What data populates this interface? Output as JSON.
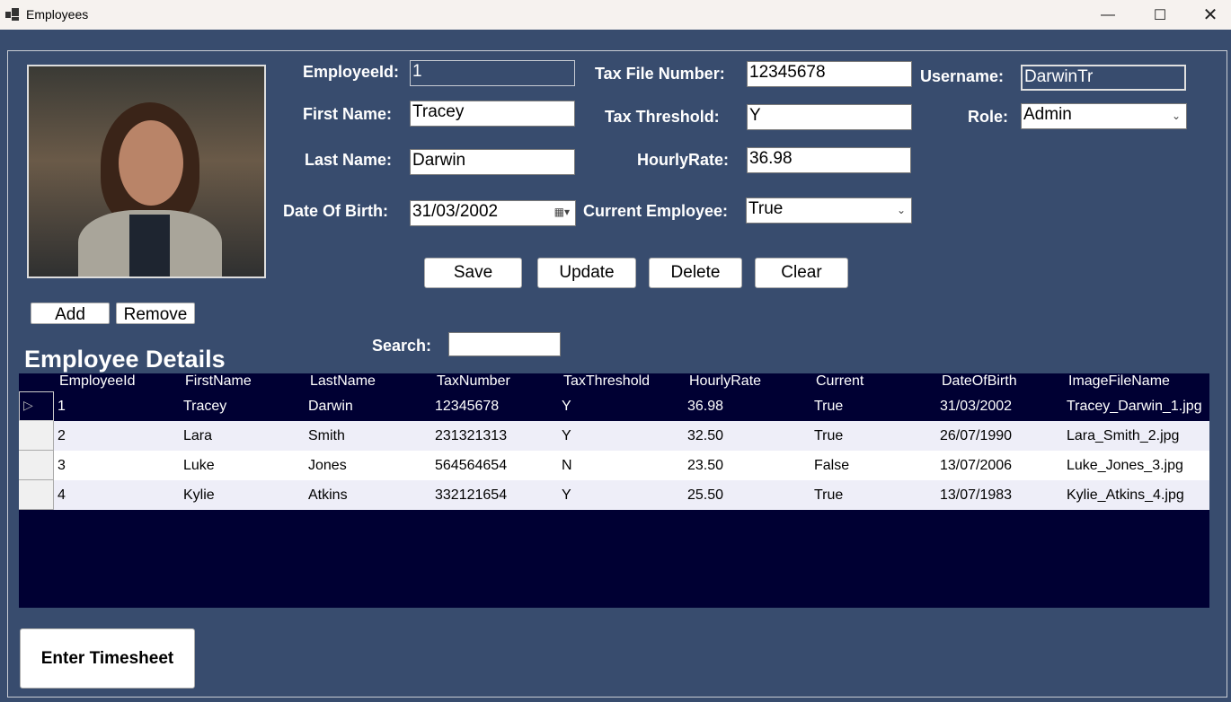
{
  "window": {
    "title": "Employees",
    "icon": "app-icon",
    "controls": [
      "minimize-icon",
      "maximize-icon",
      "close-icon"
    ]
  },
  "form": {
    "employee_id": {
      "label": "EmployeeId:",
      "value": "1"
    },
    "first_name": {
      "label": "First Name:",
      "value": "Tracey"
    },
    "last_name": {
      "label": "Last Name:",
      "value": "Darwin"
    },
    "dob": {
      "label": "Date Of Birth:",
      "value": "31/03/2002"
    },
    "tax_file": {
      "label": "Tax File Number:",
      "value": "12345678"
    },
    "tax_threshold": {
      "label": "Tax Threshold:",
      "value": "Y"
    },
    "hourly_rate": {
      "label": "HourlyRate:",
      "value": "36.98"
    },
    "current": {
      "label": "Current Employee:",
      "value": "True"
    },
    "username": {
      "label": "Username:",
      "value": "DarwinTr"
    },
    "role": {
      "label": "Role:",
      "value": "Admin"
    }
  },
  "buttons": {
    "save": "Save",
    "update": "Update",
    "delete": "Delete",
    "clear": "Clear",
    "add": "Add",
    "remove": "Remove",
    "timesheet": "Enter Timesheet"
  },
  "search": {
    "label": "Search:",
    "value": ""
  },
  "grid": {
    "title": "Employee Details",
    "columns": [
      "EmployeeId",
      "FirstName",
      "LastName",
      "TaxNumber",
      "TaxThreshold",
      "HourlyRate",
      "Current",
      "DateOfBirth",
      "ImageFileName"
    ],
    "rows": [
      [
        "1",
        "Tracey",
        "Darwin",
        "12345678",
        "Y",
        "36.98",
        "True",
        "31/03/2002",
        "Tracey_Darwin_1.jpg"
      ],
      [
        "2",
        "Lara",
        "Smith",
        "231321313",
        "Y",
        "32.50",
        "True",
        "26/07/1990",
        "Lara_Smith_2.jpg"
      ],
      [
        "3",
        "Luke",
        "Jones",
        "564564654",
        "N",
        "23.50",
        "False",
        "13/07/2006",
        "Luke_Jones_3.jpg"
      ],
      [
        "4",
        "Kylie",
        "Atkins",
        "332121654",
        "Y",
        "25.50",
        "True",
        "13/07/1983",
        "Kylie_Atkins_4.jpg"
      ]
    ]
  },
  "colors": {
    "background": "#384c6e",
    "grid_background": "#000033",
    "selected_row": "#000033",
    "alt_row": "#eeeef8"
  }
}
